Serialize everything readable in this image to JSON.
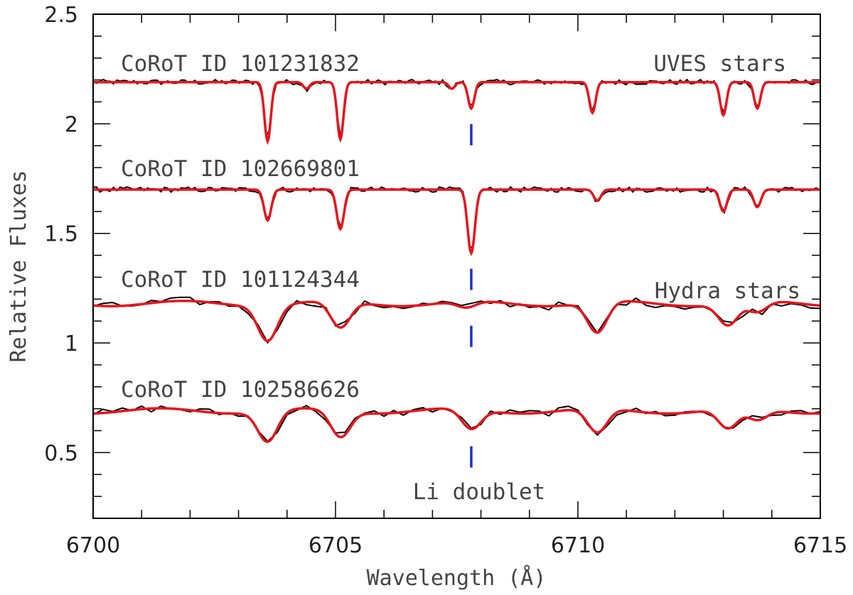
{
  "chart_data": {
    "type": "line",
    "xlabel": "Wavelength (Å)",
    "ylabel": "Relative Fluxes",
    "xlim": [
      6700,
      6715
    ],
    "ylim": [
      0.2,
      2.5
    ],
    "x_ticks": [
      6700,
      6705,
      6710,
      6715
    ],
    "y_ticks": [
      0.5,
      1,
      1.5,
      2,
      2.5
    ],
    "x_tick_labels": [
      "6700",
      "6705",
      "6710",
      "6715"
    ],
    "y_tick_labels": [
      "0.5",
      "1",
      "1.5",
      "2",
      "2.5"
    ],
    "grid": false,
    "colors": {
      "observed": "#000000",
      "model": "#e8141b",
      "li_marker": "#1f2fd0"
    },
    "li_line_wavelength": 6707.8,
    "li_label": "Li doublet",
    "group_labels": [
      "UVES stars",
      "Hydra stars"
    ],
    "spectra": [
      {
        "star": "CoRoT ID 101231832",
        "group": "UVES stars",
        "continuum": 2.19,
        "line_width": 0.065,
        "lines": [
          {
            "wavelength": 6703.6,
            "flux": 1.92
          },
          {
            "wavelength": 6704.4,
            "flux": 2.16
          },
          {
            "wavelength": 6705.1,
            "flux": 1.93
          },
          {
            "wavelength": 6707.4,
            "flux": 2.16
          },
          {
            "wavelength": 6707.8,
            "flux": 2.07
          },
          {
            "wavelength": 6710.3,
            "flux": 2.05
          },
          {
            "wavelength": 6713.0,
            "flux": 2.04
          },
          {
            "wavelength": 6713.7,
            "flux": 2.07
          }
        ]
      },
      {
        "star": "CoRoT ID 102669801",
        "group": "UVES stars",
        "continuum": 1.7,
        "line_width": 0.075,
        "lines": [
          {
            "wavelength": 6703.6,
            "flux": 1.56
          },
          {
            "wavelength": 6705.1,
            "flux": 1.52
          },
          {
            "wavelength": 6707.8,
            "flux": 1.41
          },
          {
            "wavelength": 6710.4,
            "flux": 1.65
          },
          {
            "wavelength": 6713.0,
            "flux": 1.6
          },
          {
            "wavelength": 6713.7,
            "flux": 1.62
          }
        ]
      },
      {
        "star": "CoRoT ID 101124344",
        "group": "Hydra stars",
        "continuum": 1.18,
        "line_width": 0.2,
        "lines": [
          {
            "wavelength": 6703.6,
            "flux": 1.02
          },
          {
            "wavelength": 6705.1,
            "flux": 1.06
          },
          {
            "wavelength": 6707.7,
            "flux": 1.15
          },
          {
            "wavelength": 6710.4,
            "flux": 1.04
          },
          {
            "wavelength": 6713.1,
            "flux": 1.08
          },
          {
            "wavelength": 6713.7,
            "flux": 1.13
          }
        ]
      },
      {
        "star": "CoRoT ID 102586626",
        "group": "Hydra stars",
        "continuum": 0.69,
        "line_width": 0.2,
        "lines": [
          {
            "wavelength": 6703.6,
            "flux": 0.55
          },
          {
            "wavelength": 6705.1,
            "flux": 0.57
          },
          {
            "wavelength": 6707.8,
            "flux": 0.6
          },
          {
            "wavelength": 6710.4,
            "flux": 0.58
          },
          {
            "wavelength": 6713.1,
            "flux": 0.6
          },
          {
            "wavelength": 6713.7,
            "flux": 0.64
          }
        ]
      }
    ]
  }
}
